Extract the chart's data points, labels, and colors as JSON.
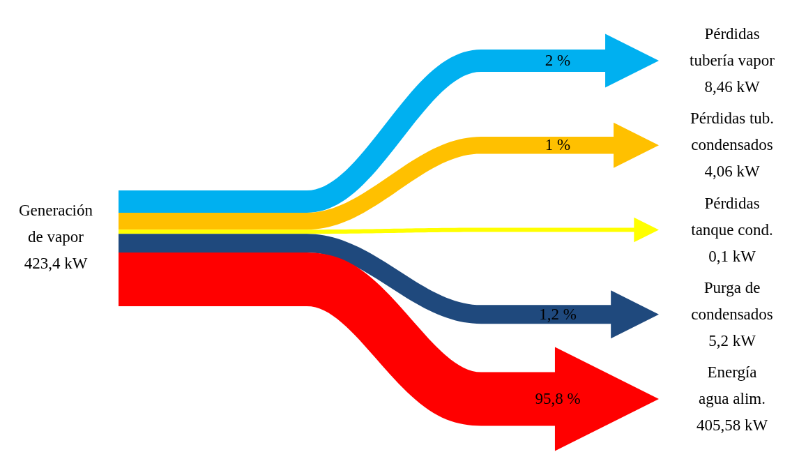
{
  "chart_data": {
    "type": "other",
    "categories": [
      "Pérdidas\ntubería vapor",
      "Pérdidas tub.\ncondensados",
      "Pérdidas\ntanque cond.",
      "Purga de\ncondensados",
      "Energía\nagua alim."
    ],
    "values": [
      8.46,
      4.06,
      0.1,
      5.2,
      405.58
    ],
    "value_labels": [
      "8,46 kW",
      "4,06 kW",
      "0,1 kW",
      "5,2 kW",
      "405,58 kW"
    ],
    "colors": [
      "#00b0f0",
      "#ffc000",
      "#ffff00",
      "#1f497d",
      "#ff0000"
    ],
    "annotations": [
      "Generación\nde vapor\n423,4 kW",
      {
        "text": "2 %",
        "x": "Pérdidas\ntubería vapor"
      },
      {
        "text": "1 %",
        "x": "Pérdidas tub.\ncondensados"
      },
      {
        "text": "1,2 %",
        "x": "Purga de\ncondensados"
      },
      {
        "text": "95,8 %",
        "x": "Energía\nagua alim."
      }
    ]
  }
}
